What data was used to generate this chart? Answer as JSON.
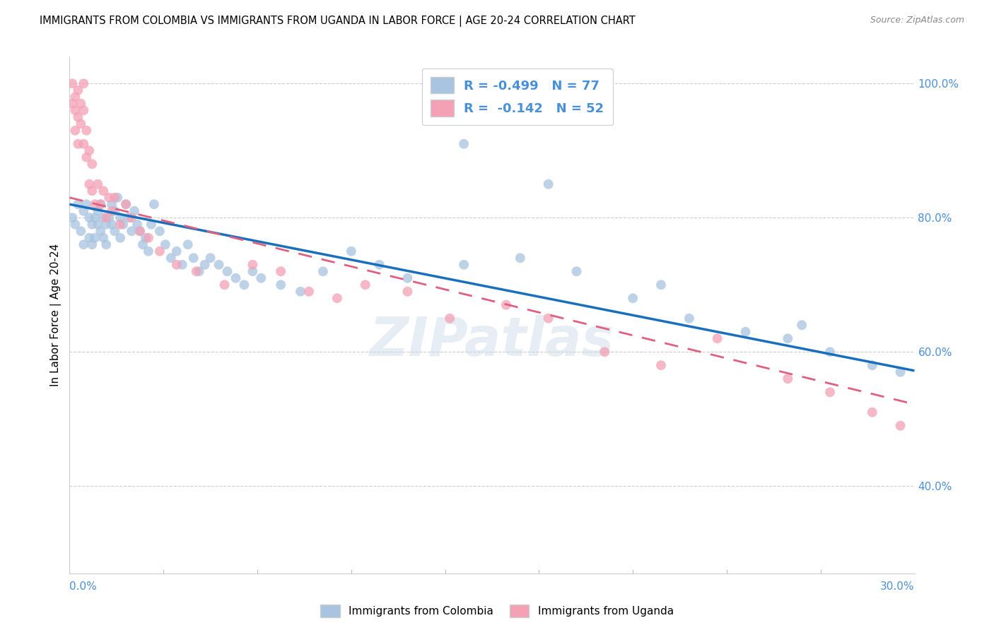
{
  "title": "IMMIGRANTS FROM COLOMBIA VS IMMIGRANTS FROM UGANDA IN LABOR FORCE | AGE 20-24 CORRELATION CHART",
  "source": "Source: ZipAtlas.com",
  "ylabel": "In Labor Force | Age 20-24",
  "xlim": [
    0.0,
    0.3
  ],
  "ylim": [
    0.27,
    1.04
  ],
  "colombia_R": -0.499,
  "colombia_N": 77,
  "uganda_R": -0.142,
  "uganda_N": 52,
  "colombia_color": "#a8c4e0",
  "uganda_color": "#f4a0b5",
  "colombia_line_color": "#1a6fbd",
  "uganda_line_color": "#e06080",
  "watermark": "ZIPatlas",
  "colombia_scatter_x": [
    0.001,
    0.002,
    0.003,
    0.004,
    0.005,
    0.005,
    0.006,
    0.007,
    0.007,
    0.008,
    0.008,
    0.009,
    0.009,
    0.01,
    0.01,
    0.011,
    0.011,
    0.012,
    0.012,
    0.013,
    0.013,
    0.014,
    0.015,
    0.015,
    0.016,
    0.016,
    0.017,
    0.018,
    0.018,
    0.019,
    0.02,
    0.021,
    0.022,
    0.023,
    0.024,
    0.025,
    0.026,
    0.027,
    0.028,
    0.029,
    0.03,
    0.032,
    0.034,
    0.036,
    0.038,
    0.04,
    0.042,
    0.044,
    0.046,
    0.048,
    0.05,
    0.053,
    0.056,
    0.059,
    0.062,
    0.065,
    0.068,
    0.075,
    0.082,
    0.09,
    0.1,
    0.11,
    0.12,
    0.14,
    0.16,
    0.18,
    0.2,
    0.22,
    0.24,
    0.255,
    0.27,
    0.285,
    0.295,
    0.14,
    0.17,
    0.21,
    0.26
  ],
  "colombia_scatter_y": [
    0.8,
    0.79,
    0.82,
    0.78,
    0.81,
    0.76,
    0.82,
    0.8,
    0.77,
    0.79,
    0.76,
    0.8,
    0.77,
    0.81,
    0.79,
    0.82,
    0.78,
    0.8,
    0.77,
    0.79,
    0.76,
    0.8,
    0.82,
    0.79,
    0.81,
    0.78,
    0.83,
    0.8,
    0.77,
    0.79,
    0.82,
    0.8,
    0.78,
    0.81,
    0.79,
    0.78,
    0.76,
    0.77,
    0.75,
    0.79,
    0.82,
    0.78,
    0.76,
    0.74,
    0.75,
    0.73,
    0.76,
    0.74,
    0.72,
    0.73,
    0.74,
    0.73,
    0.72,
    0.71,
    0.7,
    0.72,
    0.71,
    0.7,
    0.69,
    0.72,
    0.75,
    0.73,
    0.71,
    0.73,
    0.74,
    0.72,
    0.68,
    0.65,
    0.63,
    0.62,
    0.6,
    0.58,
    0.57,
    0.91,
    0.85,
    0.7,
    0.64
  ],
  "uganda_scatter_x": [
    0.001,
    0.001,
    0.002,
    0.002,
    0.002,
    0.003,
    0.003,
    0.003,
    0.004,
    0.004,
    0.005,
    0.005,
    0.005,
    0.006,
    0.006,
    0.007,
    0.007,
    0.008,
    0.008,
    0.009,
    0.01,
    0.011,
    0.012,
    0.013,
    0.014,
    0.015,
    0.016,
    0.018,
    0.02,
    0.022,
    0.025,
    0.028,
    0.032,
    0.038,
    0.045,
    0.055,
    0.065,
    0.075,
    0.085,
    0.095,
    0.105,
    0.12,
    0.135,
    0.155,
    0.17,
    0.19,
    0.21,
    0.23,
    0.255,
    0.27,
    0.285,
    0.295
  ],
  "uganda_scatter_y": [
    0.97,
    1.0,
    0.96,
    0.98,
    0.93,
    0.95,
    0.99,
    0.91,
    0.94,
    0.97,
    0.91,
    0.96,
    1.0,
    0.89,
    0.93,
    0.85,
    0.9,
    0.84,
    0.88,
    0.82,
    0.85,
    0.82,
    0.84,
    0.8,
    0.83,
    0.81,
    0.83,
    0.79,
    0.82,
    0.8,
    0.78,
    0.77,
    0.75,
    0.73,
    0.72,
    0.7,
    0.73,
    0.72,
    0.69,
    0.68,
    0.7,
    0.69,
    0.65,
    0.67,
    0.65,
    0.6,
    0.58,
    0.62,
    0.56,
    0.54,
    0.51,
    0.49
  ],
  "colombia_line_x": [
    0.0,
    0.3
  ],
  "colombia_line_y": [
    0.82,
    0.572
  ],
  "uganda_line_x": [
    0.0,
    0.3
  ],
  "uganda_line_y": [
    0.83,
    0.522
  ],
  "ytick_vals": [
    0.4,
    0.6,
    0.8,
    1.0
  ],
  "ytick_labels": [
    "40.0%",
    "60.0%",
    "80.0%",
    "100.0%"
  ]
}
